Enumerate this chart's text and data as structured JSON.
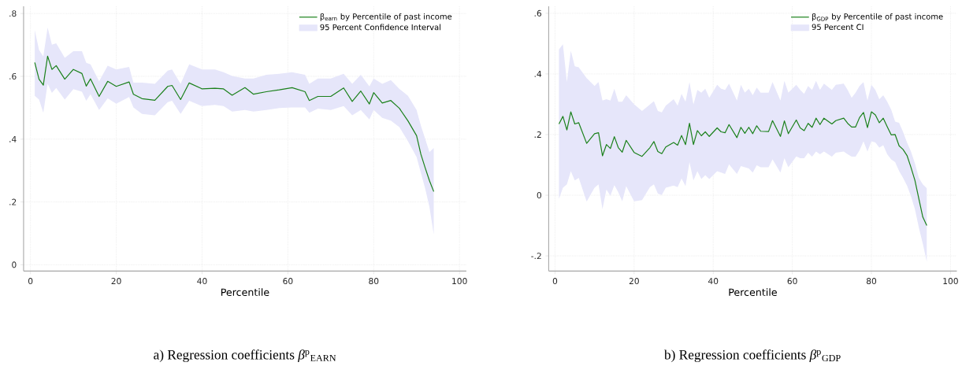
{
  "chart_data": [
    {
      "type": "line",
      "xlabel": "Percentile",
      "xlim": [
        -1.6,
        101.6
      ],
      "ylim": [
        -0.02,
        0.823
      ],
      "xticks": [
        0,
        20,
        40,
        60,
        80,
        100
      ],
      "yticks": [
        0,
        {
          "value": 0.2,
          "label": ".2"
        },
        {
          "value": 0.4,
          "label": ".4"
        },
        {
          "value": 0.6,
          "label": ".6"
        },
        {
          "value": 0.8,
          "label": ".8"
        }
      ],
      "grid": true,
      "legend": "top right",
      "annotations": [
        "a) Regression coefficients *β*$^{p}$$_{EARN}$"
      ],
      "series": [
        {
          "name": "β$_{earn}$ by Percentile of past income",
          "color": "#1a801a",
          "x": [
            1,
            2,
            3,
            4,
            5,
            6,
            8,
            10,
            12,
            13,
            14,
            16,
            18,
            20,
            23,
            24,
            26,
            29,
            32,
            33,
            35,
            37,
            40,
            43,
            45,
            47,
            50,
            52,
            55,
            58,
            61,
            64,
            65,
            67,
            70,
            73,
            75,
            77,
            79,
            80,
            82,
            84,
            86,
            88,
            90,
            91,
            92,
            93,
            94
          ],
          "values": [
            0.644,
            0.591,
            0.572,
            0.664,
            0.622,
            0.634,
            0.591,
            0.622,
            0.609,
            0.569,
            0.592,
            0.536,
            0.584,
            0.568,
            0.582,
            0.543,
            0.529,
            0.524,
            0.568,
            0.571,
            0.526,
            0.579,
            0.56,
            0.562,
            0.56,
            0.54,
            0.564,
            0.543,
            0.551,
            0.557,
            0.564,
            0.551,
            0.523,
            0.536,
            0.536,
            0.563,
            0.52,
            0.553,
            0.512,
            0.548,
            0.515,
            0.523,
            0.498,
            0.458,
            0.411,
            0.352,
            0.309,
            0.268,
            0.233
          ],
          "upper": [
            0.747,
            0.684,
            0.663,
            0.755,
            0.701,
            0.705,
            0.659,
            0.68,
            0.68,
            0.643,
            0.638,
            0.584,
            0.634,
            0.622,
            0.63,
            0.58,
            0.58,
            0.576,
            0.618,
            0.622,
            0.576,
            0.638,
            0.622,
            0.622,
            0.613,
            0.601,
            0.593,
            0.593,
            0.605,
            0.608,
            0.613,
            0.605,
            0.576,
            0.593,
            0.593,
            0.608,
            0.576,
            0.605,
            0.568,
            0.593,
            0.576,
            0.588,
            0.56,
            0.538,
            0.493,
            0.443,
            0.401,
            0.359,
            0.372
          ],
          "lower": [
            0.538,
            0.526,
            0.484,
            0.576,
            0.547,
            0.563,
            0.526,
            0.559,
            0.551,
            0.522,
            0.543,
            0.493,
            0.53,
            0.513,
            0.534,
            0.501,
            0.48,
            0.476,
            0.518,
            0.522,
            0.48,
            0.522,
            0.505,
            0.509,
            0.505,
            0.488,
            0.493,
            0.488,
            0.493,
            0.499,
            0.501,
            0.501,
            0.484,
            0.497,
            0.493,
            0.505,
            0.476,
            0.493,
            0.463,
            0.493,
            0.468,
            0.459,
            0.438,
            0.393,
            0.343,
            0.293,
            0.243,
            0.184,
            0.097
          ]
        },
        {
          "type": "area",
          "name": "95 Percent Confidence Interval",
          "color": "#e6e6fa"
        }
      ]
    },
    {
      "type": "line",
      "xlabel": "Percentile",
      "xlim": [
        -1.6,
        101.6
      ],
      "ylim": [
        -0.25,
        0.623
      ],
      "xticks": [
        0,
        20,
        40,
        60,
        80,
        100
      ],
      "yticks": [
        {
          "value": -0.2,
          "label": "-.2"
        },
        0,
        {
          "value": 0.2,
          "label": ".2"
        },
        {
          "value": 0.4,
          "label": ".4"
        },
        {
          "value": 0.6,
          "label": ".6"
        }
      ],
      "grid": true,
      "legend": "top right",
      "annotations": [
        "b) Regression coefficients *β*$^{p}$$_{GDP}$"
      ],
      "series": [
        {
          "name": "β$_{GDP}$ by Percentile of past income",
          "color": "#1a801a",
          "x": [
            1,
            2,
            3,
            4,
            5,
            6,
            8,
            10,
            11,
            12,
            13,
            14,
            15,
            16,
            17,
            18,
            20,
            22,
            24,
            25,
            26,
            27,
            28,
            30,
            31,
            32,
            33,
            34,
            35,
            36,
            37,
            38,
            39,
            41,
            42,
            43,
            44,
            46,
            47,
            48,
            49,
            50,
            51,
            52,
            54,
            55,
            57,
            58,
            59,
            61,
            62,
            63,
            64,
            65,
            66,
            67,
            68,
            70,
            71,
            73,
            74,
            75,
            76,
            77,
            78,
            79,
            80,
            81,
            82,
            83,
            84,
            85,
            86,
            87,
            88,
            89,
            90,
            91,
            92,
            93,
            94
          ],
          "values": [
            0.235,
            0.26,
            0.215,
            0.275,
            0.235,
            0.239,
            0.171,
            0.203,
            0.206,
            0.13,
            0.167,
            0.154,
            0.193,
            0.157,
            0.142,
            0.181,
            0.141,
            0.128,
            0.157,
            0.177,
            0.144,
            0.137,
            0.159,
            0.174,
            0.165,
            0.197,
            0.167,
            0.237,
            0.167,
            0.213,
            0.196,
            0.209,
            0.194,
            0.222,
            0.209,
            0.206,
            0.233,
            0.19,
            0.224,
            0.204,
            0.224,
            0.203,
            0.229,
            0.211,
            0.21,
            0.246,
            0.194,
            0.245,
            0.203,
            0.248,
            0.222,
            0.213,
            0.237,
            0.224,
            0.254,
            0.233,
            0.254,
            0.235,
            0.246,
            0.254,
            0.237,
            0.225,
            0.225,
            0.256,
            0.273,
            0.223,
            0.275,
            0.265,
            0.239,
            0.254,
            0.226,
            0.199,
            0.2,
            0.163,
            0.151,
            0.131,
            0.092,
            0.049,
            -0.012,
            -0.072,
            -0.1
          ],
          "upper": [
            0.481,
            0.498,
            0.373,
            0.476,
            0.425,
            0.422,
            0.386,
            0.36,
            0.373,
            0.312,
            0.317,
            0.312,
            0.351,
            0.308,
            0.308,
            0.33,
            0.3,
            0.278,
            0.299,
            0.31,
            0.278,
            0.273,
            0.295,
            0.317,
            0.295,
            0.334,
            0.308,
            0.373,
            0.299,
            0.347,
            0.338,
            0.351,
            0.321,
            0.364,
            0.351,
            0.347,
            0.368,
            0.312,
            0.364,
            0.338,
            0.351,
            0.33,
            0.355,
            0.338,
            0.338,
            0.373,
            0.312,
            0.377,
            0.338,
            0.364,
            0.347,
            0.334,
            0.36,
            0.347,
            0.377,
            0.347,
            0.368,
            0.347,
            0.364,
            0.368,
            0.347,
            0.321,
            0.338,
            0.36,
            0.373,
            0.312,
            0.364,
            0.347,
            0.317,
            0.33,
            0.308,
            0.282,
            0.243,
            0.239,
            0.209,
            0.174,
            0.144,
            0.105,
            0.057,
            0.036,
            0.023
          ],
          "lower": [
            -0.012,
            0.025,
            0.036,
            0.079,
            0.049,
            0.057,
            -0.021,
            0.025,
            0.036,
            -0.046,
            0.019,
            -0.002,
            0.033,
            0.01,
            -0.02,
            0.03,
            -0.02,
            -0.016,
            0.027,
            0.036,
            0.005,
            0.001,
            0.025,
            0.032,
            0.027,
            0.055,
            0.03,
            0.109,
            0.049,
            0.079,
            0.053,
            0.066,
            0.053,
            0.079,
            0.075,
            0.07,
            0.102,
            0.07,
            0.096,
            0.092,
            0.088,
            0.075,
            0.099,
            0.092,
            0.092,
            0.118,
            0.075,
            0.122,
            0.092,
            0.128,
            0.122,
            0.122,
            0.14,
            0.127,
            0.144,
            0.135,
            0.144,
            0.127,
            0.14,
            0.144,
            0.135,
            0.127,
            0.127,
            0.148,
            0.178,
            0.144,
            0.178,
            0.174,
            0.157,
            0.165,
            0.135,
            0.118,
            0.109,
            0.08,
            0.057,
            0.032,
            -0.003,
            -0.046,
            -0.107,
            -0.16,
            -0.219
          ]
        },
        {
          "type": "area",
          "name": "95 Percent CI",
          "color": "#e6e6fa"
        }
      ]
    }
  ]
}
